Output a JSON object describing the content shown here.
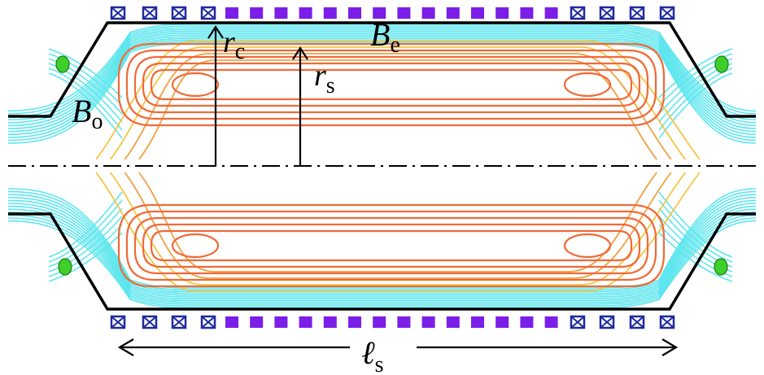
{
  "labels": {
    "r_c": {
      "main": "r",
      "sub": "c"
    },
    "r_s": {
      "main": "r",
      "sub": "s"
    },
    "B_e": {
      "main": "B",
      "sub": "e"
    },
    "B_o": {
      "main": "B",
      "sub": "o"
    },
    "l_s": {
      "main": "ℓ",
      "sub": "s"
    }
  },
  "colors": {
    "wall": "#000000",
    "coil_cross": "#1f2a9e",
    "coil_solid": "#7a1ee8",
    "open_field": "#5ee6ee",
    "sep_outer": "#f5c542",
    "sep_mid": "#f0a040",
    "closed_field": "#f06a38",
    "mirror_coil": "#3ecf2a"
  },
  "coils": {
    "cross_count_each_end": 4,
    "solid_count": 14
  }
}
